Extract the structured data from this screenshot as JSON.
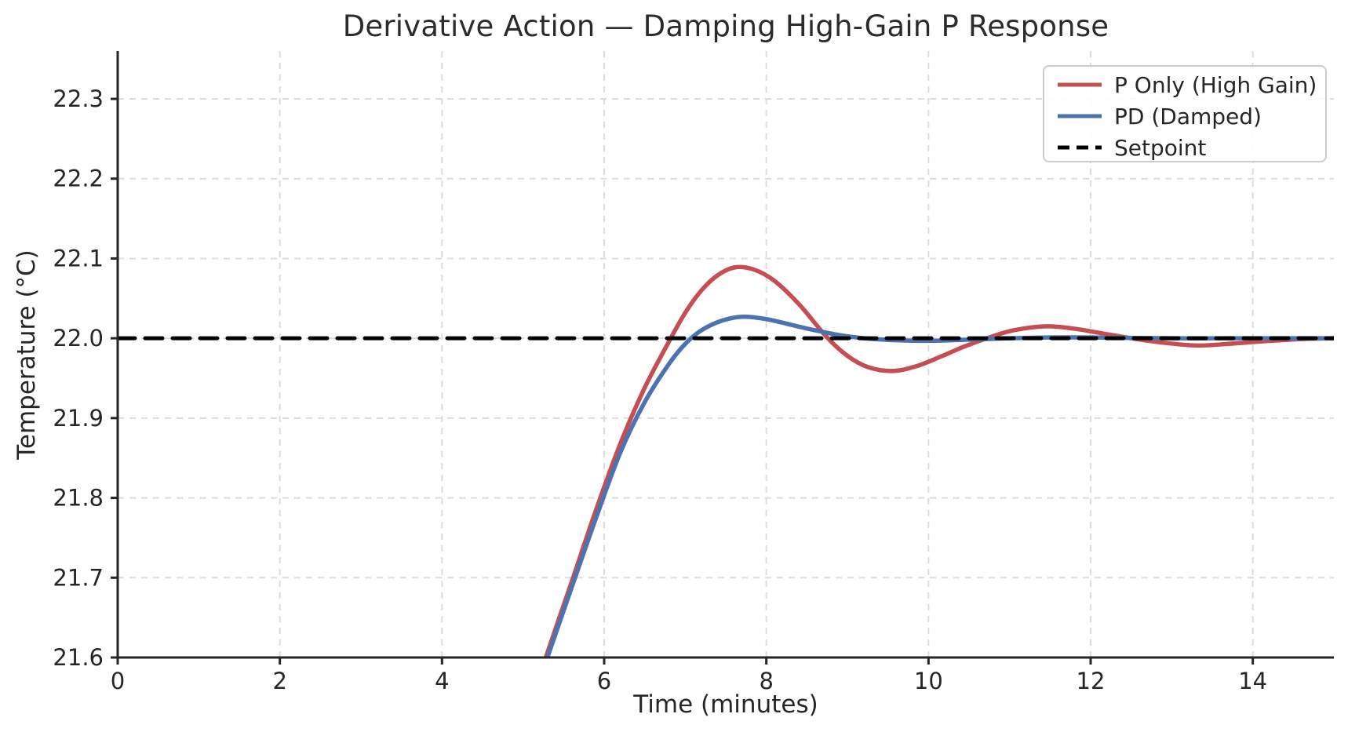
{
  "chart_data": {
    "type": "line",
    "title": "Derivative Action — Damping High-Gain P Response",
    "xlabel": "Time (minutes)",
    "ylabel": "Temperature (°C)",
    "xlim": [
      0,
      15
    ],
    "ylim": [
      21.6,
      22.36
    ],
    "xticks": [
      0,
      2,
      4,
      6,
      8,
      10,
      12,
      14
    ],
    "yticks": [
      21.6,
      21.7,
      21.8,
      21.9,
      22.0,
      22.1,
      22.2,
      22.3
    ],
    "grid": true,
    "grid_style": "dashed",
    "legend_position": "upper right",
    "setpoint_value": 22.0,
    "colors": {
      "p_only": "#c44e52",
      "pd": "#4c72b0",
      "setpoint": "#000000",
      "grid": "#dcdcdc",
      "axis": "#262626",
      "legend_border": "#cccccc"
    },
    "series": [
      {
        "name": "P Only (High Gain)",
        "color": "#c44e52",
        "style": "solid",
        "points": [
          [
            5.0,
            21.512
          ],
          [
            5.28,
            21.6
          ],
          [
            5.6,
            21.695
          ],
          [
            5.9,
            21.785
          ],
          [
            6.2,
            21.868
          ],
          [
            6.5,
            21.938
          ],
          [
            6.8,
            21.996
          ],
          [
            7.0,
            22.032
          ],
          [
            7.2,
            22.06
          ],
          [
            7.4,
            22.079
          ],
          [
            7.62,
            22.089
          ],
          [
            7.85,
            22.086
          ],
          [
            8.1,
            22.072
          ],
          [
            8.4,
            22.043
          ],
          [
            8.75,
            22.001
          ],
          [
            9.0,
            21.978
          ],
          [
            9.25,
            21.964
          ],
          [
            9.55,
            21.959
          ],
          [
            9.85,
            21.965
          ],
          [
            10.15,
            21.977
          ],
          [
            10.45,
            21.99
          ],
          [
            10.75,
            22.001
          ],
          [
            11.05,
            22.01
          ],
          [
            11.45,
            22.015
          ],
          [
            11.8,
            22.012
          ],
          [
            12.15,
            22.006
          ],
          [
            12.5,
            22.0
          ],
          [
            12.85,
            21.995
          ],
          [
            13.3,
            21.991
          ],
          [
            13.7,
            21.993
          ],
          [
            14.1,
            21.996
          ],
          [
            14.6,
            21.999
          ],
          [
            15.0,
            22.0
          ]
        ]
      },
      {
        "name": "PD (Damped)",
        "color": "#4c72b0",
        "style": "solid",
        "points": [
          [
            5.0,
            21.513
          ],
          [
            5.3,
            21.6
          ],
          [
            5.6,
            21.688
          ],
          [
            5.9,
            21.775
          ],
          [
            6.2,
            21.857
          ],
          [
            6.5,
            21.92
          ],
          [
            6.8,
            21.968
          ],
          [
            7.0,
            21.993
          ],
          [
            7.2,
            22.01
          ],
          [
            7.45,
            22.022
          ],
          [
            7.7,
            22.027
          ],
          [
            8.0,
            22.024
          ],
          [
            8.3,
            22.017
          ],
          [
            8.6,
            22.01
          ],
          [
            8.9,
            22.004
          ],
          [
            9.2,
            22.0
          ],
          [
            9.5,
            21.998
          ],
          [
            9.8,
            21.997
          ],
          [
            10.1,
            21.997
          ],
          [
            10.4,
            21.998
          ],
          [
            10.7,
            21.999
          ],
          [
            11.0,
            22.0
          ],
          [
            11.5,
            22.001
          ],
          [
            12.0,
            22.001
          ],
          [
            13.0,
            22.0
          ],
          [
            14.0,
            22.0
          ],
          [
            15.0,
            22.0
          ]
        ]
      },
      {
        "name": "Setpoint",
        "color": "#000000",
        "style": "dashed",
        "points": [
          [
            0,
            22.0
          ],
          [
            15,
            22.0
          ]
        ]
      }
    ]
  }
}
